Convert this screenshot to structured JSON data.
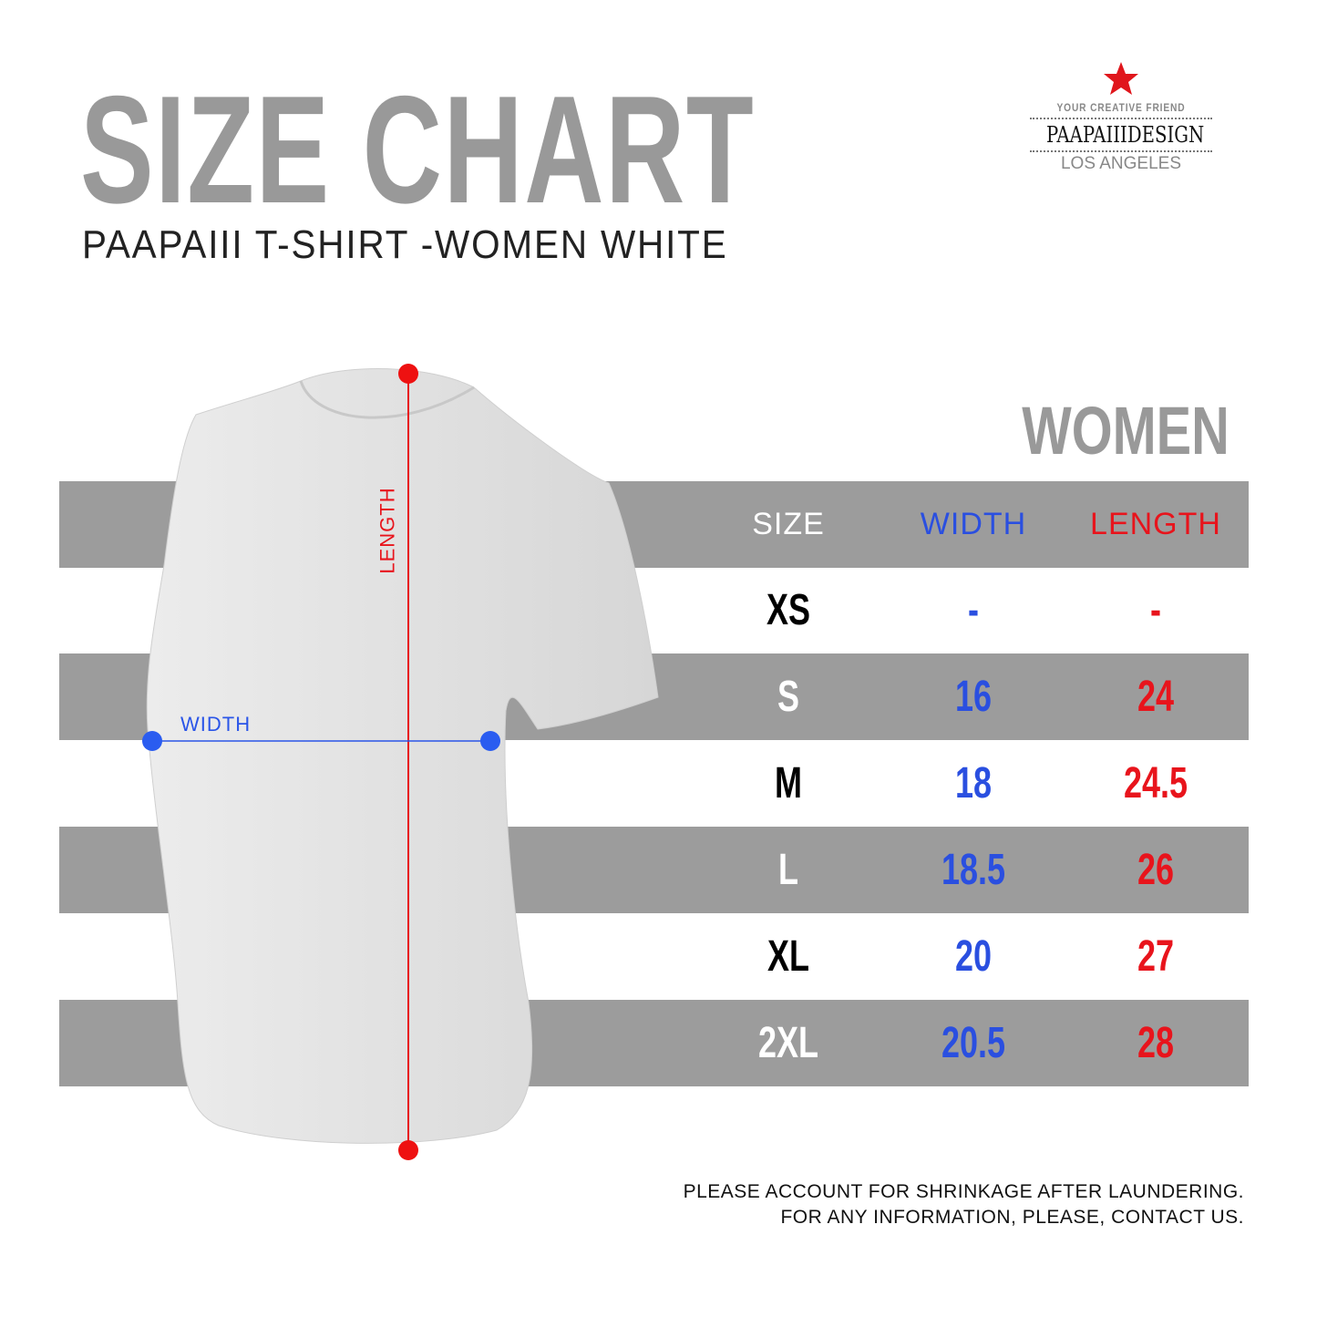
{
  "title": "SIZE CHART",
  "subtitle": "PAAPAIII T-SHIRT -WOMEN WHITE",
  "logo": {
    "tagline": "YOUR CREATIVE FRIEND",
    "name": "PAAPAIIIDESIGN",
    "city": "LOS ANGELES",
    "star_color": "#e0161c"
  },
  "section_label": "WOMEN",
  "diagram": {
    "length_label": "LENGTH",
    "width_label": "WIDTH",
    "length_color": "#e8141c",
    "width_color": "#2a55e8"
  },
  "table": {
    "headers": [
      "SIZE",
      "WIDTH",
      "LENGTH"
    ],
    "header_colors": [
      "#ffffff",
      "#2a4fe0",
      "#e8141c"
    ],
    "rows": [
      {
        "size": "XS",
        "width": "-",
        "length": "-"
      },
      {
        "size": "S",
        "width": "16",
        "length": "24"
      },
      {
        "size": "M",
        "width": "18",
        "length": "24.5"
      },
      {
        "size": "L",
        "width": "18.5",
        "length": "26"
      },
      {
        "size": "XL",
        "width": "20",
        "length": "27"
      },
      {
        "size": "2XL",
        "width": "20.5",
        "length": "28"
      }
    ]
  },
  "notes": [
    "PLEASE ACCOUNT FOR SHRINKAGE AFTER LAUNDERING.",
    "FOR ANY INFORMATION, PLEASE, CONTACT US."
  ]
}
